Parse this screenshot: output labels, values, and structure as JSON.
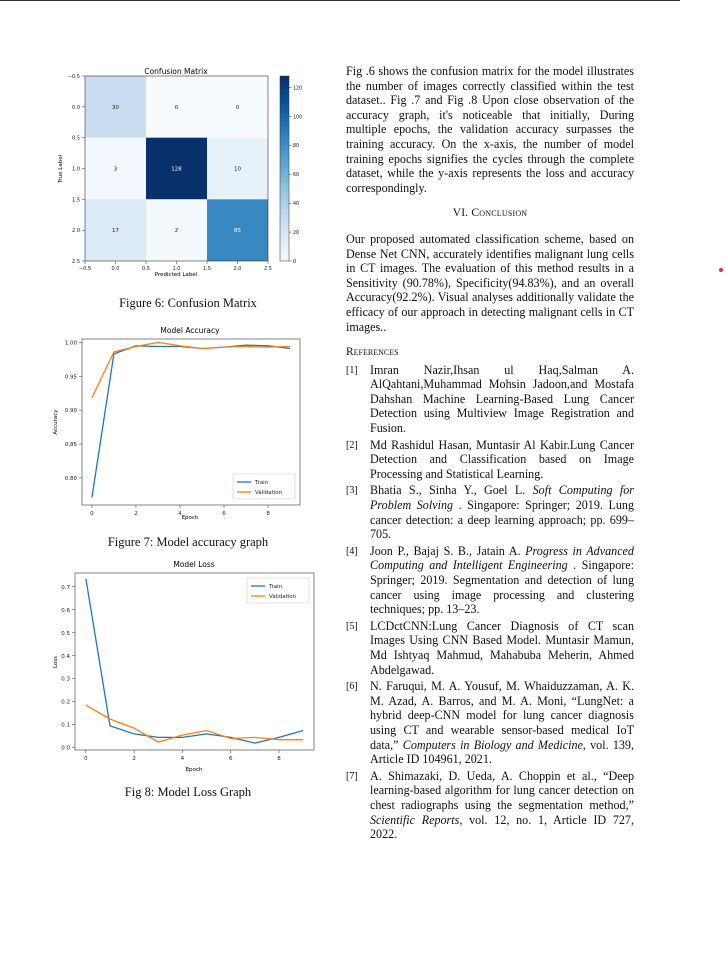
{
  "figures": {
    "fig6_caption": "Figure 6: Confusion Matrix",
    "fig7_caption": "Figure 7: Model accuracy graph",
    "fig8_caption": "Fig 8: Model Loss Graph"
  },
  "right_column": {
    "intro_paragraph": "Fig .6 shows the confusion matrix for the model illustrates the number of images correctly classified within the test dataset.. Fig .7 and Fig .8 Upon close observation of the accuracy graph, it's noticeable that initially, During multiple epochs, the validation accuracy surpasses the training accuracy. On the x-axis, the number of model training epochs signifies the cycles through the complete dataset, while the y-axis represents the loss and accuracy correspondingly.",
    "section_number": "VI.",
    "section_title": "Conclusion",
    "conclusion_paragraph": "Our proposed automated classification scheme, based on Dense Net CNN, accurately identifies malignant lung cells in CT images. The evaluation of this method results in a Sensitivity (90.78%), Specificity(94.83%), and an overall Accuracy(92.2%). Visual analyses additionally validate the efficacy of our approach in detecting malignant cells in CT images..",
    "references_title": "References",
    "references": [
      {
        "num": "[1]",
        "text": "Imran Nazir,Ihsan ul Haq,Salman A. AlQahtani,Muhammad Mohsin Jadoon,and Mostafa Dahshan Machine Learning-Based Lung Cancer Detection using Multiview Image Registration and Fusion."
      },
      {
        "num": "[2]",
        "text": "Md Rashidul Hasan, Muntasir Al Kabir.Lung Cancer Detection and Classification based on Image Processing and Statistical Learning."
      },
      {
        "num": "[3]",
        "text_before": "Bhatia S., Sinha Y., Goel L. ",
        "italic": "Soft Computing for Problem Solving",
        "text_after": " . Singapore: Springer; 2019. Lung cancer detection: a deep learning approach; pp. 699–705."
      },
      {
        "num": "[4]",
        "text_before": "Joon P., Bajaj S. B., Jatain A. ",
        "italic": "Progress in Advanced Computing and Intelligent Engineering",
        "text_after": " . Singapore: Springer; 2019. Segmentation and detection of lung cancer using image processing and clustering techniques; pp. 13–23."
      },
      {
        "num": "[5]",
        "text": "LCDctCNN:Lung Cancer Diagnosis of CT scan Images Using CNN Based Model. Muntasir Mamun, Md Ishtyaq Mahmud, Mahabuba Meherin, Ahmed Abdelgawad."
      },
      {
        "num": "[6]",
        "text_before": "N. Faruqui, M. A. Yousuf, M. Whaiduzzaman, A. K. M. Azad, A. Barros, and M. A. Moni, “LungNet: a hybrid deep-CNN model for lung cancer diagnosis using CT and wearable sensor-based medical IoT data,” ",
        "italic": "Computers in Biology and Medicine",
        "text_after": ", vol. 139, Article ID 104961, 2021."
      },
      {
        "num": "[7]",
        "text_before": "A. Shimazaki, D. Ueda, A. Choppin et al., “Deep learning-based algorithm for lung cancer detection on chest radiographs using the segmentation method,” ",
        "italic": "Scientific Reports",
        "text_after": ", vol. 12, no. 1, Article ID 727, 2022."
      }
    ]
  },
  "chart_data": [
    {
      "type": "heatmap",
      "title": "Confusion Matrix",
      "xlabel": "Predicted Label",
      "ylabel": "True Label",
      "x_ticks": [
        "−0.5",
        "0.0",
        "0.5",
        "1.0",
        "1.5",
        "2.0",
        "2.5"
      ],
      "y_ticks": [
        "−0.5",
        "0.0",
        "0.5",
        "1.0",
        "1.5",
        "2.0",
        "2.5"
      ],
      "matrix": [
        [
          30,
          0,
          0
        ],
        [
          3,
          128,
          10
        ],
        [
          17,
          2,
          85
        ]
      ],
      "colorbar_ticks": [
        0,
        20,
        40,
        60,
        80,
        100,
        120
      ],
      "colormap": "Blues",
      "vmax": 128
    },
    {
      "type": "line",
      "title": "Model Accuracy",
      "xlabel": "Epoch",
      "ylabel": "Accuracy",
      "xlim": [
        -0.45,
        9.45
      ],
      "ylim": [
        0.76,
        1.005
      ],
      "x_ticks": [
        0,
        2,
        4,
        6,
        8
      ],
      "y_ticks": [
        "0.80",
        "0.85",
        "0.90",
        "0.95",
        "1.00"
      ],
      "legend_position": "lower-right",
      "series": [
        {
          "name": "Train",
          "color": "#1f77b4",
          "x": [
            0,
            1,
            2,
            3,
            4,
            5,
            6,
            7,
            8,
            9
          ],
          "values": [
            0.771,
            0.983,
            0.995,
            0.994,
            0.994,
            0.991,
            0.993,
            0.996,
            0.995,
            0.991
          ]
        },
        {
          "name": "Validation",
          "color": "#ff7f0e",
          "x": [
            0,
            1,
            2,
            3,
            4,
            5,
            6,
            7,
            8,
            9
          ],
          "values": [
            0.918,
            0.986,
            0.994,
            1.0,
            0.995,
            0.991,
            0.993,
            0.994,
            0.993,
            0.994
          ]
        }
      ]
    },
    {
      "type": "line",
      "title": "Model Loss",
      "xlabel": "Epoch",
      "ylabel": "Loss",
      "xlim": [
        -0.45,
        9.45
      ],
      "ylim": [
        -0.01,
        0.76
      ],
      "x_ticks": [
        0,
        2,
        4,
        6,
        8
      ],
      "y_ticks": [
        "0.0",
        "0.1",
        "0.2",
        "0.3",
        "0.4",
        "0.5",
        "0.6",
        "0.7"
      ],
      "legend_position": "upper-right",
      "series": [
        {
          "name": "Train",
          "color": "#1f77b4",
          "x": [
            0,
            1,
            2,
            3,
            4,
            5,
            6,
            7,
            8,
            9
          ],
          "values": [
            0.735,
            0.095,
            0.06,
            0.045,
            0.045,
            0.06,
            0.045,
            0.02,
            0.045,
            0.075
          ]
        },
        {
          "name": "Validation",
          "color": "#ff7f0e",
          "x": [
            0,
            1,
            2,
            3,
            4,
            5,
            6,
            7,
            8,
            9
          ],
          "values": [
            0.185,
            0.125,
            0.085,
            0.025,
            0.055,
            0.075,
            0.04,
            0.045,
            0.035,
            0.035
          ]
        }
      ]
    }
  ]
}
